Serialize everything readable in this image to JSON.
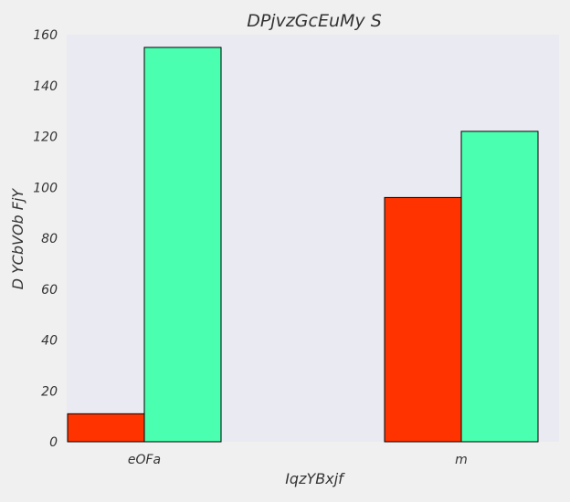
{
  "chart_data": {
    "type": "bar",
    "title": "DPjvzGcEuMy S",
    "xlabel": "IqzYBxjf",
    "ylabel": "D YCbVOb FjY",
    "categories": [
      "eOFa",
      "m"
    ],
    "series": [
      {
        "values": [
          11,
          96
        ],
        "color": "#ff3300"
      },
      {
        "values": [
          155,
          122
        ],
        "color": "#4affb0"
      }
    ],
    "ylim": [
      0,
      160
    ],
    "yticks": [
      0,
      20,
      40,
      60,
      80,
      100,
      120,
      140,
      160
    ],
    "grid": false,
    "legend": "none",
    "plot_background": "#eaeaf2",
    "figure_background": "#f0f0f0"
  }
}
